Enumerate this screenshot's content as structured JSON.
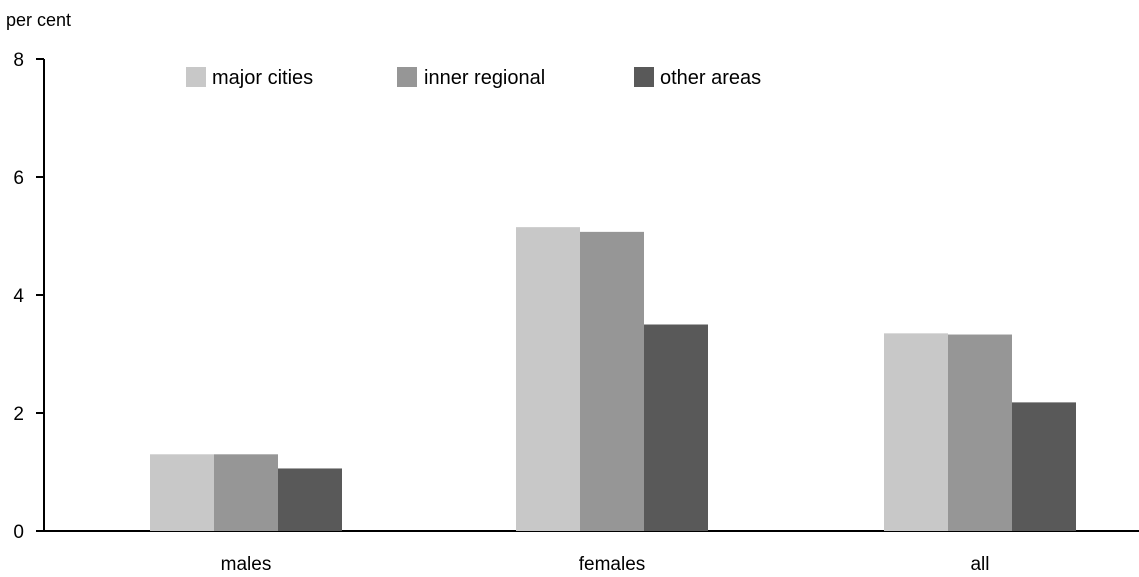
{
  "chart_data": {
    "type": "bar",
    "y_unit_label": "per cent",
    "categories": [
      "males",
      "females",
      "all"
    ],
    "series": [
      {
        "name": "major cities",
        "color": "#c8c8c8",
        "values": [
          1.3,
          5.15,
          3.35
        ]
      },
      {
        "name": "inner regional",
        "color": "#969696",
        "values": [
          1.3,
          5.07,
          3.33
        ]
      },
      {
        "name": "other areas",
        "color": "#595959",
        "values": [
          1.06,
          3.5,
          2.18
        ]
      }
    ],
    "ylim": [
      0,
      8
    ],
    "yticks": [
      "0",
      "2",
      "4",
      "6",
      "8"
    ],
    "grid": false,
    "legend_position": "top"
  }
}
